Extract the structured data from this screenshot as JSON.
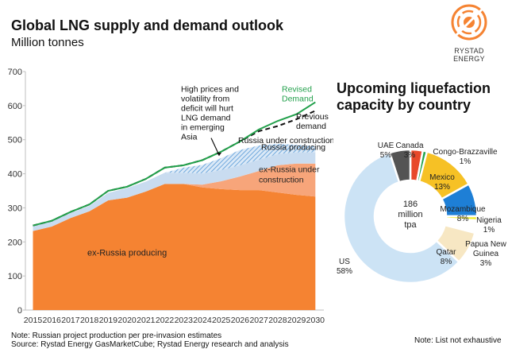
{
  "header": {
    "title": "Global LNG supply and demand outlook",
    "subtitle": "Million tonnes"
  },
  "logo": {
    "text": "RYSTAD ENERGY"
  },
  "colors": {
    "ex_russia_producing": "#f58332",
    "ex_russia_under_construction": "#f7a57a",
    "russia_producing": "#c9dcf0",
    "russia_under_construction": "#6fa8dc",
    "revised_demand": "#22a04b",
    "previous_demand": "#111111"
  },
  "chart_data": [
    {
      "type": "area",
      "x": [
        2015,
        2016,
        2017,
        2018,
        2019,
        2020,
        2021,
        2022,
        2023,
        2024,
        2025,
        2026,
        2027,
        2028,
        2029,
        2030
      ],
      "ylim": [
        0,
        700
      ],
      "yticks": [
        0,
        100,
        200,
        300,
        400,
        500,
        600,
        700
      ],
      "xtick_labels": [
        "2015",
        "2016",
        "2017",
        "2018",
        "2019",
        "2020",
        "2021",
        "2022",
        "2023",
        "2024",
        "2025",
        "2026",
        "2027",
        "2028",
        "2029",
        "2030"
      ],
      "ytick_labels": [
        "0",
        "100",
        "200",
        "300",
        "400",
        "500",
        "600",
        "700"
      ],
      "series": [
        {
          "name": "ex-Russia producing",
          "kind": "stack",
          "values": [
            232,
            245,
            270,
            290,
            322,
            330,
            348,
            370,
            370,
            360,
            355,
            352,
            352,
            345,
            338,
            333
          ]
        },
        {
          "name": "ex-Russia under construction",
          "kind": "stack",
          "values": [
            0,
            0,
            0,
            0,
            0,
            0,
            0,
            0,
            0,
            8,
            23,
            40,
            56,
            80,
            92,
            97
          ]
        },
        {
          "name": "Russia producing",
          "kind": "stack",
          "values": [
            15,
            15,
            15,
            16,
            22,
            28,
            29,
            33,
            33,
            33,
            33,
            33,
            33,
            33,
            33,
            33
          ]
        },
        {
          "name": "Russia under construction",
          "kind": "stack",
          "values": [
            0,
            0,
            0,
            0,
            0,
            0,
            0,
            0,
            15,
            25,
            35,
            45,
            42,
            30,
            22,
            18
          ]
        },
        {
          "name": "Revised Demand",
          "kind": "line",
          "values": [
            248,
            262,
            288,
            310,
            350,
            362,
            385,
            418,
            425,
            440,
            465,
            495,
            530,
            555,
            575,
            610
          ]
        },
        {
          "name": "Previous demand",
          "kind": "dashed-line",
          "values": [
            248,
            262,
            288,
            310,
            350,
            362,
            385,
            418,
            425,
            440,
            465,
            495,
            525,
            540,
            560,
            585
          ]
        }
      ],
      "annotations": [
        {
          "text": "High prices and volatility from deficit will hurt LNG demand in emerging Asia"
        },
        {
          "text": "ex-Russia producing"
        },
        {
          "text": "ex-Russia under construction"
        },
        {
          "text": "Russia producing"
        },
        {
          "text": "Russia under construction"
        },
        {
          "text": "Revised Demand"
        },
        {
          "text": "Previous demand"
        }
      ]
    },
    {
      "type": "pie",
      "title": "Upcoming liquefaction capacity by country",
      "center_label": "186 million tpa",
      "slices": [
        {
          "label": "Canada",
          "value": 3,
          "color": "#e8492b"
        },
        {
          "label": "Congo-Brazzaville",
          "value": 1,
          "color": "#1ea34a"
        },
        {
          "label": "Mexico",
          "value": 13,
          "color": "#f6c125"
        },
        {
          "label": "Mozambique",
          "value": 8,
          "color": "#1e7fd6"
        },
        {
          "label": "Nigeria",
          "value": 1,
          "color": "#f2ee30"
        },
        {
          "label": "Papua New Guinea",
          "value": 3,
          "color": "#ffffff"
        },
        {
          "label": "Qatar",
          "value": 8,
          "color": "#f7e7c3"
        },
        {
          "label": "US",
          "value": 58,
          "color": "#cce3f5"
        },
        {
          "label": "UAE",
          "value": 5,
          "color": "#545454"
        }
      ],
      "slice_labels": [
        {
          "name": "Canada",
          "pct": "3%"
        },
        {
          "name": "Congo-Brazzaville",
          "pct": "1%"
        },
        {
          "name": "Mexico",
          "pct": "13%"
        },
        {
          "name": "Mozambique",
          "pct": "8%"
        },
        {
          "name": "Nigeria",
          "pct": "1%"
        },
        {
          "name": "Papua New Guinea",
          "pct": "3%"
        },
        {
          "name": "Qatar",
          "pct": "8%"
        },
        {
          "name": "US",
          "pct": "58%"
        },
        {
          "name": "UAE",
          "pct": "5%"
        }
      ]
    }
  ],
  "footer": {
    "note": "Note: Russian project production per pre-invasion estimates",
    "source": "Source: Rystad Energy GasMarketCube; Rystad Energy research and analysis",
    "note_right": "Note: List not exhaustive"
  }
}
